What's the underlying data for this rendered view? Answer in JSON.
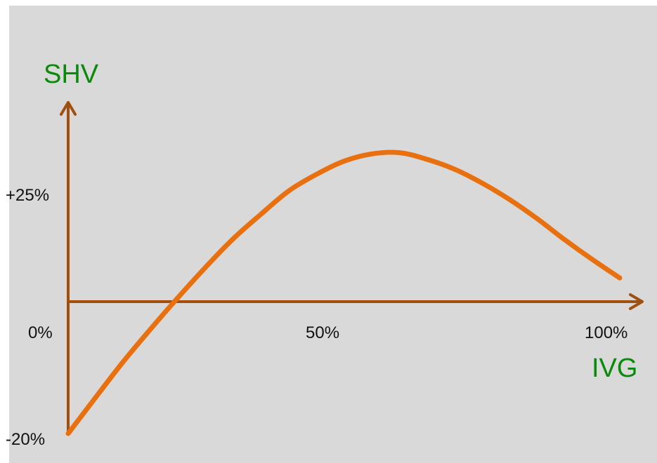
{
  "chart_data": {
    "type": "line",
    "xlabel": "IVG",
    "ylabel": "SHV",
    "x_ticks": [
      {
        "label": "0%",
        "value": 0
      },
      {
        "label": "50%",
        "value": 50
      },
      {
        "label": "100%",
        "value": 100
      }
    ],
    "y_ticks": [
      {
        "label": "+25%",
        "value": 25
      },
      {
        "label": "-20%",
        "value": -20
      }
    ],
    "xlim": [
      0,
      100
    ],
    "ylim": [
      -20,
      25
    ],
    "grid": false,
    "series": [
      {
        "x": [
          0,
          5,
          10,
          15,
          20,
          25,
          30,
          35,
          40,
          45,
          50,
          55,
          60,
          65,
          70,
          75,
          80,
          85,
          90,
          95,
          100
        ],
        "y": [
          -20,
          -14.5,
          -9.1,
          -4.1,
          0.7,
          5.3,
          9.6,
          13.3,
          16.8,
          19.3,
          21.3,
          22.4,
          22.6,
          21.6,
          20.1,
          18.0,
          15.5,
          12.6,
          9.4,
          6.4,
          3.6
        ]
      }
    ]
  },
  "colors": {
    "axis": "#a0500e",
    "curve": "#e8700f",
    "axis_title": "#0a8a0a",
    "background": "#d9d9d9"
  }
}
